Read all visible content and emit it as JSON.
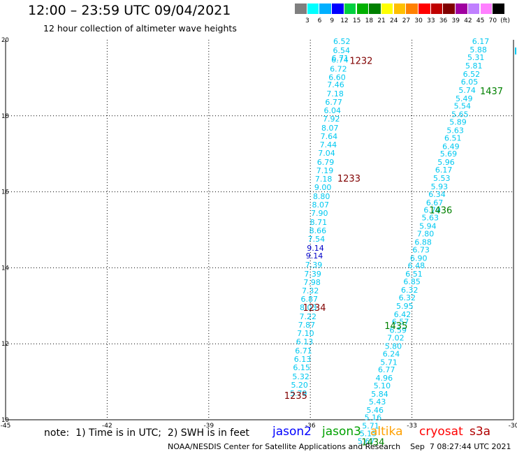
{
  "header": {
    "title": "12:00 – 23:59 UTC 09/04/2021",
    "subtitle": "12 hour collection of altimeter wave heights"
  },
  "legend_scale": {
    "labels": [
      "3",
      "6",
      "9",
      "12",
      "15",
      "18",
      "21",
      "24",
      "27",
      "30",
      "33",
      "36",
      "39",
      "42",
      "45",
      "70",
      "(ft)"
    ],
    "colors": [
      "#7f7f7f",
      "#00ffff",
      "#00b0ff",
      "#0000ff",
      "#00d040",
      "#00b000",
      "#008000",
      "#ffff00",
      "#ffc000",
      "#ff8000",
      "#ff0000",
      "#c00000",
      "#800000",
      "#a000a0",
      "#c080ff",
      "#ff80ff",
      "#000000"
    ]
  },
  "axes": {
    "lon_labels": [
      "-45",
      "-42",
      "-39",
      "-36",
      "-33",
      "-30"
    ],
    "lat_labels": [
      "20",
      "18",
      "16",
      "14",
      "12",
      "10"
    ]
  },
  "colors": {
    "cyan": "#00c8f0",
    "blue": "#0000c8",
    "pass_darkred": "#800000",
    "pass_green": "#008000"
  },
  "tracks": [
    {
      "id": "west",
      "points": [
        {
          "v": "6.52",
          "lon": -35.07,
          "lat": 19.96,
          "c": "cyan"
        },
        {
          "v": "6.54",
          "lon": -35.08,
          "lat": 19.72,
          "c": "cyan"
        },
        {
          "v": "6.71",
          "lon": -35.12,
          "lat": 19.52,
          "c": "cyan"
        },
        {
          "v": "6.74",
          "lon": -35.13,
          "lat": 19.48,
          "c": "cyan"
        },
        {
          "v": "6.72",
          "lon": -35.17,
          "lat": 19.24,
          "c": "cyan"
        },
        {
          "v": "6.60",
          "lon": -35.21,
          "lat": 19.02,
          "c": "cyan"
        },
        {
          "v": "7.46",
          "lon": -35.25,
          "lat": 18.82,
          "c": "cyan"
        },
        {
          "v": "7.18",
          "lon": -35.27,
          "lat": 18.58,
          "c": "cyan"
        },
        {
          "v": "6.77",
          "lon": -35.31,
          "lat": 18.36,
          "c": "cyan"
        },
        {
          "v": "6.04",
          "lon": -35.35,
          "lat": 18.14,
          "c": "cyan"
        },
        {
          "v": "7.92",
          "lon": -35.38,
          "lat": 17.92,
          "c": "cyan"
        },
        {
          "v": "8.07",
          "lon": -35.42,
          "lat": 17.68,
          "c": "cyan"
        },
        {
          "v": "7.64",
          "lon": -35.45,
          "lat": 17.46,
          "c": "cyan"
        },
        {
          "v": "7.44",
          "lon": -35.47,
          "lat": 17.24,
          "c": "cyan"
        },
        {
          "v": "7.04",
          "lon": -35.52,
          "lat": 17.02,
          "c": "cyan"
        },
        {
          "v": "6.79",
          "lon": -35.55,
          "lat": 16.78,
          "c": "cyan"
        },
        {
          "v": "7.19",
          "lon": -35.57,
          "lat": 16.56,
          "c": "cyan"
        },
        {
          "v": "7.18",
          "lon": -35.61,
          "lat": 16.34,
          "c": "cyan"
        },
        {
          "v": "9.00",
          "lon": -35.63,
          "lat": 16.12,
          "c": "cyan"
        },
        {
          "v": "8.80",
          "lon": -35.67,
          "lat": 15.88,
          "c": "cyan"
        },
        {
          "v": "8.07",
          "lon": -35.7,
          "lat": 15.66,
          "c": "cyan"
        },
        {
          "v": "7.90",
          "lon": -35.73,
          "lat": 15.44,
          "c": "cyan"
        },
        {
          "v": "8.71",
          "lon": -35.76,
          "lat": 15.2,
          "c": "cyan"
        },
        {
          "v": "8.66",
          "lon": -35.78,
          "lat": 14.98,
          "c": "cyan"
        },
        {
          "v": "7.54",
          "lon": -35.82,
          "lat": 14.76,
          "c": "cyan"
        },
        {
          "v": "9.14",
          "lon": -35.85,
          "lat": 14.52,
          "c": "blue"
        },
        {
          "v": "9.14",
          "lon": -35.88,
          "lat": 14.32,
          "c": "blue"
        },
        {
          "v": "7.39",
          "lon": -35.9,
          "lat": 14.08,
          "c": "cyan"
        },
        {
          "v": "7.39",
          "lon": -35.93,
          "lat": 13.84,
          "c": "cyan"
        },
        {
          "v": "7.98",
          "lon": -35.95,
          "lat": 13.62,
          "c": "cyan"
        },
        {
          "v": "7.32",
          "lon": -36.0,
          "lat": 13.4,
          "c": "cyan"
        },
        {
          "v": "6.87",
          "lon": -36.03,
          "lat": 13.18,
          "c": "cyan"
        },
        {
          "v": "8.03",
          "lon": -36.06,
          "lat": 12.96,
          "c": "cyan"
        },
        {
          "v": "7.22",
          "lon": -36.07,
          "lat": 12.72,
          "c": "cyan"
        },
        {
          "v": "7.87",
          "lon": -36.11,
          "lat": 12.5,
          "c": "cyan"
        },
        {
          "v": "7.10",
          "lon": -36.14,
          "lat": 12.28,
          "c": "cyan"
        },
        {
          "v": "6.13",
          "lon": -36.17,
          "lat": 12.06,
          "c": "cyan"
        },
        {
          "v": "6.71",
          "lon": -36.2,
          "lat": 11.82,
          "c": "cyan"
        },
        {
          "v": "6.13",
          "lon": -36.23,
          "lat": 11.6,
          "c": "cyan"
        },
        {
          "v": "6.15",
          "lon": -36.26,
          "lat": 11.38,
          "c": "cyan"
        },
        {
          "v": "5.32",
          "lon": -36.28,
          "lat": 11.14,
          "c": "cyan"
        },
        {
          "v": "5.20",
          "lon": -36.32,
          "lat": 10.92,
          "c": "cyan"
        },
        {
          "v": "5.79",
          "lon": -36.35,
          "lat": 10.7,
          "c": "cyan"
        }
      ]
    },
    {
      "id": "east",
      "points": [
        {
          "v": "6.17",
          "lon": -30.97,
          "lat": 19.96,
          "c": "cyan"
        },
        {
          "v": "5.88",
          "lon": -31.04,
          "lat": 19.74,
          "c": "cyan"
        },
        {
          "v": "5.31",
          "lon": -31.11,
          "lat": 19.54,
          "c": "cyan"
        },
        {
          "v": "5.81",
          "lon": -31.17,
          "lat": 19.32,
          "c": "cyan"
        },
        {
          "v": "6.52",
          "lon": -31.24,
          "lat": 19.1,
          "c": "cyan"
        },
        {
          "v": "6.05",
          "lon": -31.3,
          "lat": 18.9,
          "c": "cyan"
        },
        {
          "v": "5.74",
          "lon": -31.37,
          "lat": 18.68,
          "c": "cyan"
        },
        {
          "v": "5.49",
          "lon": -31.46,
          "lat": 18.46,
          "c": "cyan"
        },
        {
          "v": "5.54",
          "lon": -31.51,
          "lat": 18.26,
          "c": "cyan"
        },
        {
          "v": "5.65",
          "lon": -31.58,
          "lat": 18.04,
          "c": "cyan"
        },
        {
          "v": "5.89",
          "lon": -31.64,
          "lat": 17.84,
          "c": "cyan"
        },
        {
          "v": "5.63",
          "lon": -31.72,
          "lat": 17.62,
          "c": "cyan"
        },
        {
          "v": "6.51",
          "lon": -31.79,
          "lat": 17.42,
          "c": "cyan"
        },
        {
          "v": "6.49",
          "lon": -31.85,
          "lat": 17.2,
          "c": "cyan"
        },
        {
          "v": "5.69",
          "lon": -31.92,
          "lat": 17.0,
          "c": "cyan"
        },
        {
          "v": "5.96",
          "lon": -31.99,
          "lat": 16.78,
          "c": "cyan"
        },
        {
          "v": "6.17",
          "lon": -32.06,
          "lat": 16.58,
          "c": "cyan"
        },
        {
          "v": "5.53",
          "lon": -32.12,
          "lat": 16.36,
          "c": "cyan"
        },
        {
          "v": "5.93",
          "lon": -32.19,
          "lat": 16.14,
          "c": "cyan"
        },
        {
          "v": "6.34",
          "lon": -32.26,
          "lat": 15.94,
          "c": "cyan"
        },
        {
          "v": "6.67",
          "lon": -32.33,
          "lat": 15.72,
          "c": "cyan"
        },
        {
          "v": "6.79",
          "lon": -32.4,
          "lat": 15.52,
          "c": "cyan"
        },
        {
          "v": "5.63",
          "lon": -32.46,
          "lat": 15.32,
          "c": "cyan"
        },
        {
          "v": "5.94",
          "lon": -32.53,
          "lat": 15.1,
          "c": "cyan"
        },
        {
          "v": "7.80",
          "lon": -32.6,
          "lat": 14.9,
          "c": "cyan"
        },
        {
          "v": "6.88",
          "lon": -32.67,
          "lat": 14.68,
          "c": "cyan"
        },
        {
          "v": "6.73",
          "lon": -32.73,
          "lat": 14.48,
          "c": "cyan"
        },
        {
          "v": "6.90",
          "lon": -32.8,
          "lat": 14.26,
          "c": "cyan"
        },
        {
          "v": "6.48",
          "lon": -32.87,
          "lat": 14.06,
          "c": "cyan"
        },
        {
          "v": "6.51",
          "lon": -32.94,
          "lat": 13.84,
          "c": "cyan"
        },
        {
          "v": "6.85",
          "lon": -33.0,
          "lat": 13.64,
          "c": "cyan"
        },
        {
          "v": "6.32",
          "lon": -33.07,
          "lat": 13.42,
          "c": "cyan"
        },
        {
          "v": "6.32",
          "lon": -33.14,
          "lat": 13.22,
          "c": "cyan"
        },
        {
          "v": "5.95",
          "lon": -33.21,
          "lat": 13.0,
          "c": "cyan"
        },
        {
          "v": "6.42",
          "lon": -33.28,
          "lat": 12.78,
          "c": "cyan"
        },
        {
          "v": "6.57",
          "lon": -33.34,
          "lat": 12.58,
          "c": "cyan"
        },
        {
          "v": "6.59",
          "lon": -33.41,
          "lat": 12.36,
          "c": "cyan"
        },
        {
          "v": "7.02",
          "lon": -33.48,
          "lat": 12.16,
          "c": "cyan"
        },
        {
          "v": "5.80",
          "lon": -33.55,
          "lat": 11.94,
          "c": "cyan"
        },
        {
          "v": "6.24",
          "lon": -33.61,
          "lat": 11.74,
          "c": "cyan"
        },
        {
          "v": "5.71",
          "lon": -33.68,
          "lat": 11.52,
          "c": "cyan"
        },
        {
          "v": "6.77",
          "lon": -33.75,
          "lat": 11.32,
          "c": "cyan"
        },
        {
          "v": "4.96",
          "lon": -33.82,
          "lat": 11.1,
          "c": "cyan"
        },
        {
          "v": "5.10",
          "lon": -33.88,
          "lat": 10.9,
          "c": "cyan"
        },
        {
          "v": "5.84",
          "lon": -33.95,
          "lat": 10.68,
          "c": "cyan"
        },
        {
          "v": "5.43",
          "lon": -34.02,
          "lat": 10.48,
          "c": "cyan"
        },
        {
          "v": "5.46",
          "lon": -34.09,
          "lat": 10.26,
          "c": "cyan"
        },
        {
          "v": "5.16",
          "lon": -34.15,
          "lat": 10.06,
          "c": "cyan"
        },
        {
          "v": "5.71",
          "lon": -34.22,
          "lat": 9.84,
          "c": "cyan"
        },
        {
          "v": "5.15",
          "lon": -34.29,
          "lat": 9.64,
          "c": "cyan"
        },
        {
          "v": "5.67",
          "lon": -34.35,
          "lat": 9.44,
          "c": "cyan"
        }
      ]
    }
  ],
  "pass_times": [
    {
      "v": "1232",
      "lon": -34.5,
      "lat": 19.46,
      "c": "pass_darkred"
    },
    {
      "v": "1233",
      "lon": -34.86,
      "lat": 16.36,
      "c": "pass_darkred"
    },
    {
      "v": "1234",
      "lon": -35.88,
      "lat": 12.96,
      "c": "pass_darkred"
    },
    {
      "v": "1235",
      "lon": -36.43,
      "lat": 10.64,
      "c": "pass_darkred"
    },
    {
      "v": "1437",
      "lon": -30.65,
      "lat": 18.66,
      "c": "pass_green"
    },
    {
      "v": "1436",
      "lon": -32.15,
      "lat": 15.52,
      "c": "pass_green"
    },
    {
      "v": "1435",
      "lon": -33.47,
      "lat": 12.48,
      "c": "pass_green"
    },
    {
      "v": "1434",
      "lon": -34.15,
      "lat": 9.42,
      "c": "pass_green"
    }
  ],
  "note": "note:  1) Time is in UTC;  2) SWH is in feet",
  "satellites": [
    {
      "name": "jason2",
      "color": "#0000ff"
    },
    {
      "name": "jason3",
      "color": "#00a000"
    },
    {
      "name": "altika",
      "color": "#ffa000"
    },
    {
      "name": "cryosat",
      "color": "#ff0000"
    },
    {
      "name": "s3a",
      "color": "#b00000"
    }
  ],
  "footer": "NOAA/NESDIS Center for Satellite Applications and Research    Sep  7 08:27:44 UTC 2021"
}
